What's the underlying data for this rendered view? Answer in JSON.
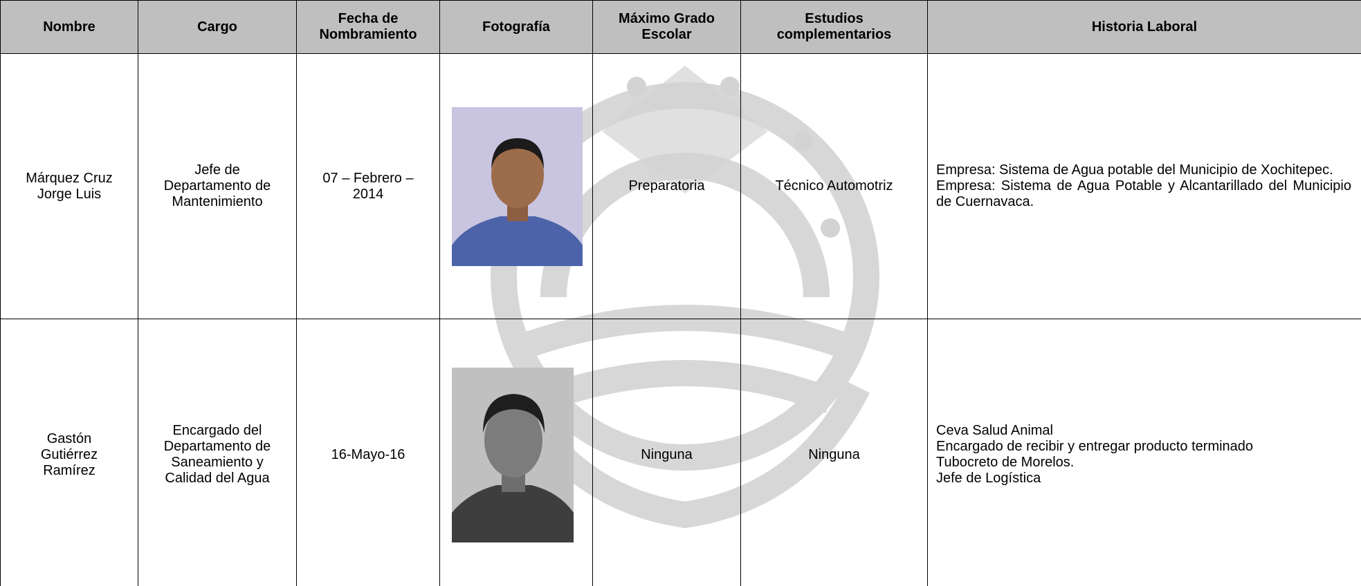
{
  "table": {
    "headers": [
      [
        "Nombre"
      ],
      [
        "Cargo"
      ],
      [
        "Fecha de",
        "Nombramiento"
      ],
      [
        "Fotografía"
      ],
      [
        "Máximo Grado",
        "Escolar"
      ],
      [
        "Estudios",
        "complementarios"
      ],
      [
        "Historia Laboral"
      ]
    ],
    "rows": [
      {
        "nombre": [
          "Márquez Cruz",
          "Jorge Luis"
        ],
        "cargo": [
          "Jefe de",
          "Departamento de",
          "Mantenimiento"
        ],
        "fecha": [
          "07 – Febrero –",
          "2014"
        ],
        "grado": "Preparatoria",
        "estudios": "Técnico Automotriz",
        "historia": [
          "Empresa: Sistema de Agua potable del Municipio de Xochitepec.",
          "Empresa: Sistema de Agua Potable y Alcantarillado del Municipio de Cuernavaca."
        ]
      },
      {
        "nombre": [
          "Gastón",
          "Gutiérrez",
          "Ramírez"
        ],
        "cargo": [
          "Encargado del",
          "Departamento de",
          "Saneamiento y",
          "Calidad del Agua"
        ],
        "fecha": [
          "16-Mayo-16"
        ],
        "grado": "Ninguna",
        "estudios": "Ninguna",
        "historia": [
          "Ceva Salud Animal",
          "Encargado de recibir y entregar producto terminado",
          "Tubocreto de Morelos.",
          "Jefe de Logística"
        ]
      }
    ]
  }
}
